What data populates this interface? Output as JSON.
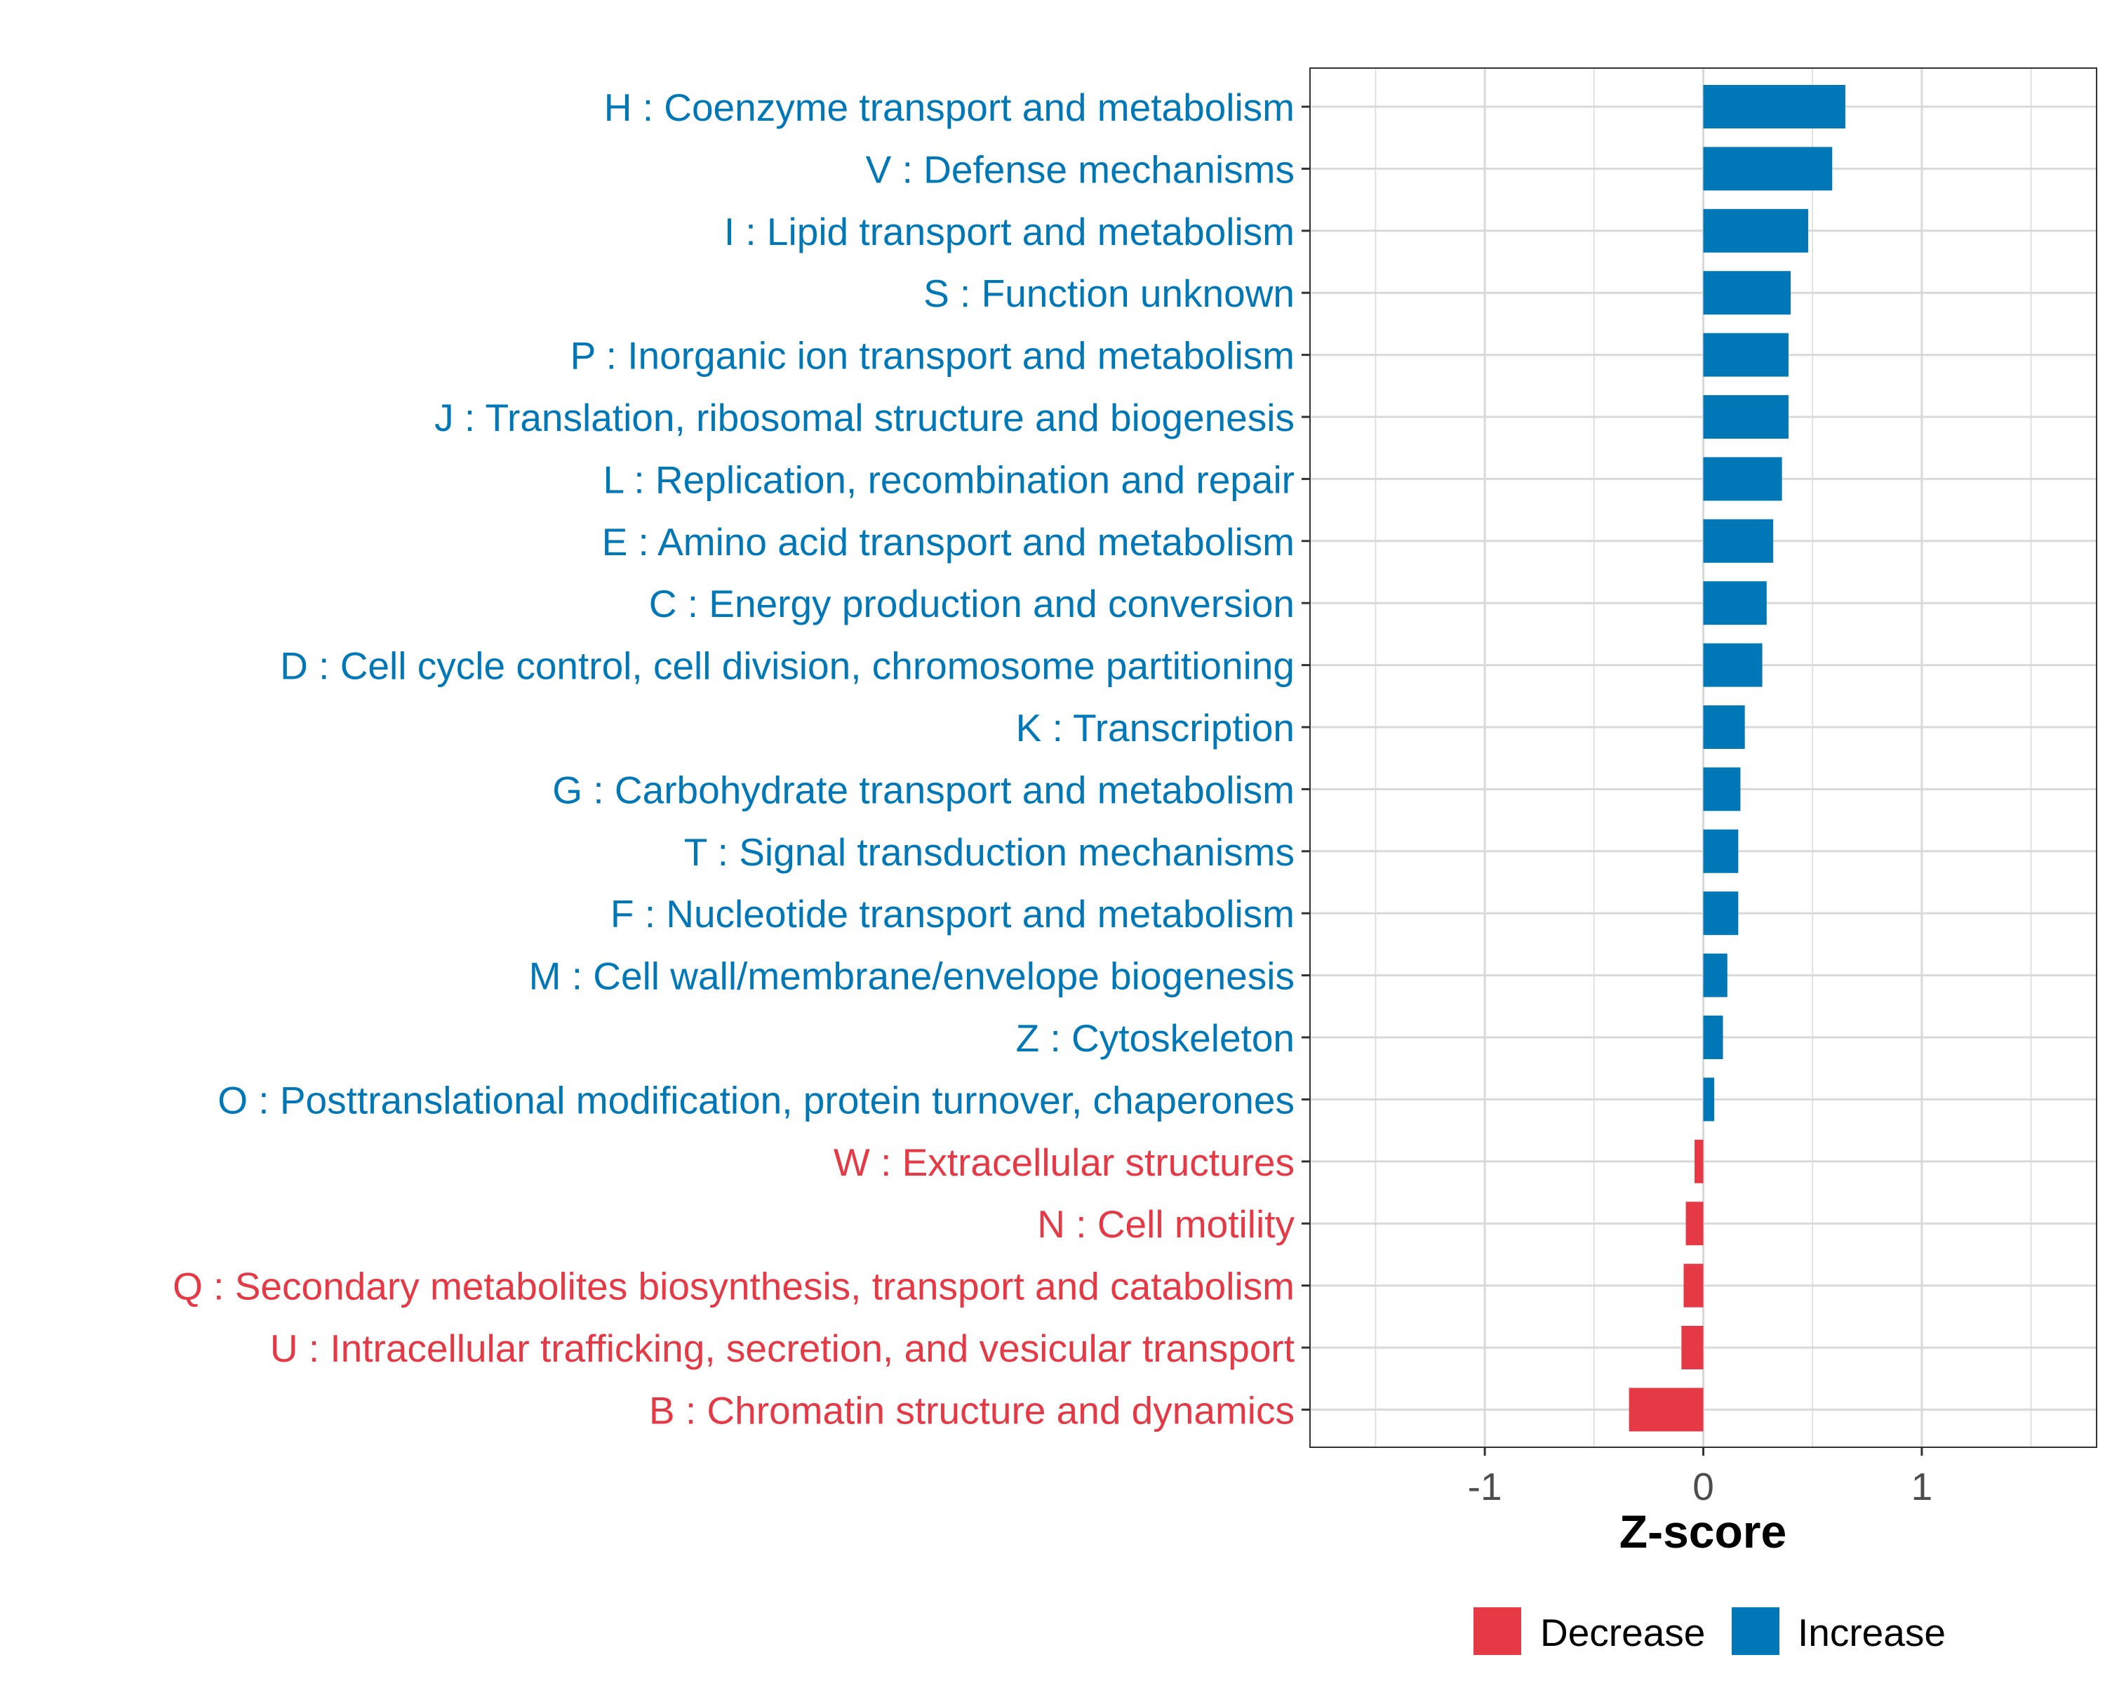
{
  "chart_data": {
    "type": "bar",
    "orientation": "horizontal",
    "xlabel": "Z-score",
    "ylabel": "",
    "xlim": [
      -1.8,
      1.8
    ],
    "xticks": [
      -1,
      0,
      1
    ],
    "xtick_labels": [
      "-1",
      "0",
      "1"
    ],
    "grid": true,
    "legend_position": "bottom",
    "categories": [
      "H : Coenzyme transport and metabolism",
      "V : Defense mechanisms",
      "I : Lipid transport and metabolism",
      "S : Function unknown",
      "P : Inorganic ion transport and metabolism",
      "J : Translation, ribosomal structure and biogenesis",
      "L : Replication, recombination and repair",
      "E : Amino acid transport and metabolism",
      "C : Energy production and conversion",
      "D : Cell cycle control, cell division, chromosome partitioning",
      "K : Transcription",
      "G : Carbohydrate transport and metabolism",
      "T : Signal transduction mechanisms",
      "F : Nucleotide transport and metabolism",
      "M : Cell wall/membrane/envelope biogenesis",
      "Z : Cytoskeleton",
      "O : Posttranslational modification, protein turnover, chaperones",
      "W : Extracellular structures",
      "N : Cell motility",
      "Q : Secondary metabolites biosynthesis, transport and catabolism",
      "U : Intracellular trafficking, secretion, and vesicular transport",
      "B : Chromatin structure and dynamics"
    ],
    "values": [
      0.65,
      0.59,
      0.48,
      0.4,
      0.39,
      0.39,
      0.36,
      0.32,
      0.29,
      0.27,
      0.19,
      0.17,
      0.16,
      0.16,
      0.11,
      0.09,
      0.05,
      -0.04,
      -0.08,
      -0.09,
      -0.1,
      -0.34
    ],
    "groups": [
      "Increase",
      "Increase",
      "Increase",
      "Increase",
      "Increase",
      "Increase",
      "Increase",
      "Increase",
      "Increase",
      "Increase",
      "Increase",
      "Increase",
      "Increase",
      "Increase",
      "Increase",
      "Increase",
      "Increase",
      "Decrease",
      "Decrease",
      "Decrease",
      "Decrease",
      "Decrease"
    ],
    "legend": [
      {
        "label": "Decrease",
        "color": "#E63946"
      },
      {
        "label": "Increase",
        "color": "#0077B6"
      }
    ]
  },
  "colors": {
    "increase": "#0077B6",
    "decrease": "#E63946",
    "grid": "#D9D9D9",
    "axis_text": "#4D4D4D",
    "title_text": "#000000"
  }
}
